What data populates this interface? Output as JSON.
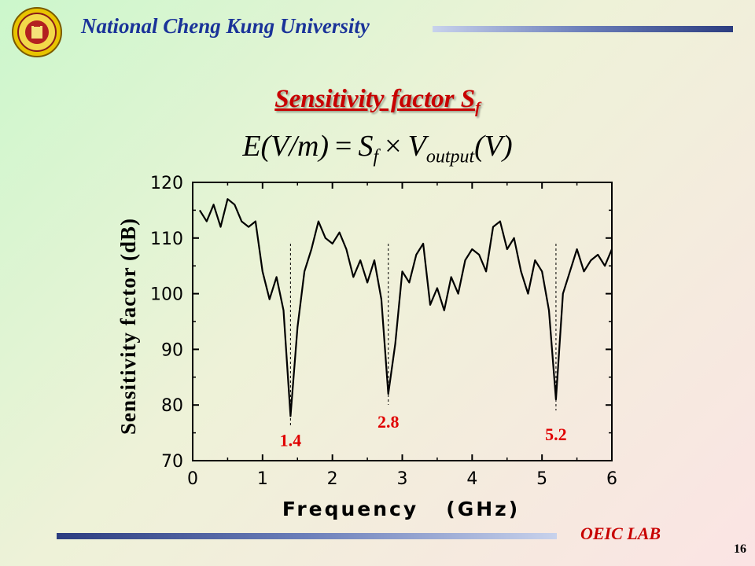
{
  "header": {
    "university": "National Cheng Kung University",
    "slide_title_main": "Sensitivity factor S",
    "slide_title_sub": "f",
    "formula": {
      "lhs": "E(V/m)",
      "eq": "=",
      "s": "S",
      "s_sub": "f",
      "times": "×",
      "v": "V",
      "v_sub": "output",
      "v_tail": "(V)"
    }
  },
  "footer": {
    "lab": "OEIC LAB",
    "page": "16"
  },
  "colors": {
    "university": "#1a3399",
    "title": "#c80000",
    "annotation": "#e00000",
    "line": "#000000"
  },
  "chart_data": {
    "type": "line",
    "title": "",
    "xlabel": "Frequency   (GHz)",
    "ylabel": "Sensitivity factor (dB)",
    "xlim": [
      0,
      6
    ],
    "ylim": [
      70,
      120
    ],
    "xticks": [
      0,
      1,
      2,
      3,
      4,
      5,
      6
    ],
    "yticks": [
      70,
      80,
      90,
      100,
      110,
      120
    ],
    "grid": false,
    "series": [
      {
        "x": [
          0.1,
          0.2,
          0.3,
          0.4,
          0.5,
          0.6,
          0.7,
          0.8,
          0.9,
          1.0,
          1.1,
          1.2,
          1.3,
          1.4,
          1.5,
          1.6,
          1.7,
          1.8,
          1.9,
          2.0,
          2.1,
          2.2,
          2.3,
          2.4,
          2.5,
          2.6,
          2.7,
          2.8,
          2.9,
          3.0,
          3.1,
          3.2,
          3.3,
          3.4,
          3.5,
          3.6,
          3.7,
          3.8,
          3.9,
          4.0,
          4.1,
          4.2,
          4.3,
          4.4,
          4.5,
          4.6,
          4.7,
          4.8,
          4.9,
          5.0,
          5.1,
          5.2,
          5.3,
          5.4,
          5.5,
          5.6,
          5.7,
          5.8,
          5.9,
          6.0
        ],
        "values": [
          115,
          113,
          116,
          112,
          117,
          116,
          113,
          112,
          113,
          104,
          99,
          103,
          97,
          78,
          94,
          104,
          108,
          113,
          110,
          109,
          111,
          108,
          103,
          106,
          102,
          106,
          99,
          82,
          91,
          104,
          102,
          107,
          109,
          98,
          101,
          97,
          103,
          100,
          106,
          108,
          107,
          104,
          112,
          113,
          108,
          110,
          104,
          100,
          106,
          104,
          97,
          81,
          100,
          104,
          108,
          104,
          106,
          107,
          105,
          108
        ]
      }
    ],
    "annotations": [
      {
        "x": 1.4,
        "label": "1.4"
      },
      {
        "x": 2.8,
        "label": "2.8"
      },
      {
        "x": 5.2,
        "label": "5.2"
      }
    ]
  }
}
